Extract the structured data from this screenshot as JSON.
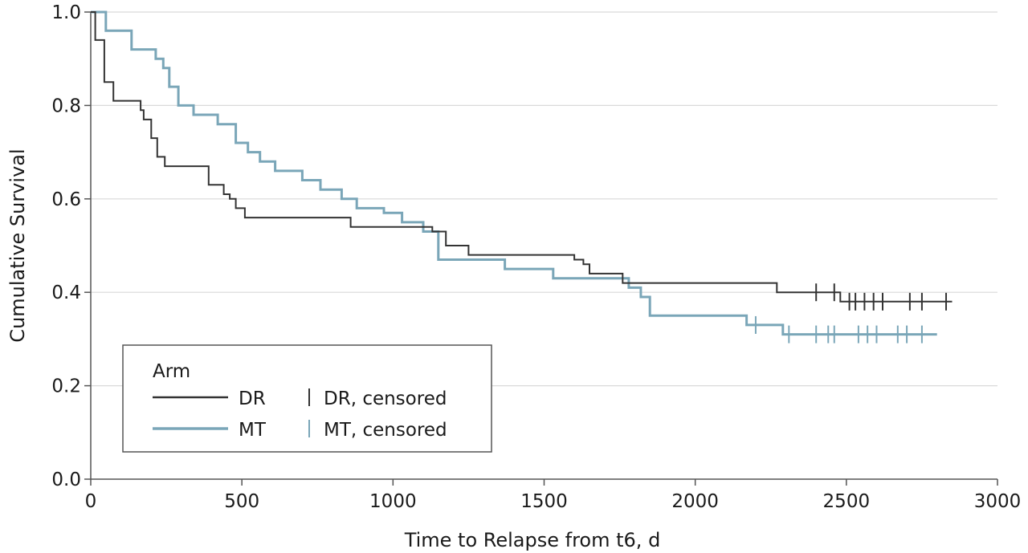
{
  "chart_data": {
    "type": "line",
    "subtype": "kaplan-meier step",
    "xlabel": "Time to Relapse from t6, d",
    "ylabel": "Cumulative Survival",
    "xlim": [
      0,
      3000
    ],
    "ylim": [
      0,
      1.0
    ],
    "xticks": [
      "0",
      "500",
      "1000",
      "1500",
      "2000",
      "2500",
      "3000"
    ],
    "yticks": [
      "0.0",
      "0.2",
      "0.4",
      "0.6",
      "0.8",
      "1.0"
    ],
    "grid": "horizontal",
    "legend": {
      "title": "Arm",
      "placement": "bottom-left",
      "items": [
        "DR",
        "MT",
        "DR, censored",
        "MT, censored"
      ]
    },
    "series": [
      {
        "name": "DR",
        "color": "#333333",
        "steps": [
          [
            0,
            1.0
          ],
          [
            15,
            0.94
          ],
          [
            45,
            0.85
          ],
          [
            75,
            0.81
          ],
          [
            165,
            0.79
          ],
          [
            175,
            0.77
          ],
          [
            200,
            0.73
          ],
          [
            220,
            0.69
          ],
          [
            245,
            0.67
          ],
          [
            310,
            0.67
          ],
          [
            330,
            0.67
          ],
          [
            390,
            0.63
          ],
          [
            440,
            0.61
          ],
          [
            460,
            0.6
          ],
          [
            480,
            0.58
          ],
          [
            510,
            0.56
          ],
          [
            630,
            0.56
          ],
          [
            700,
            0.56
          ],
          [
            860,
            0.54
          ],
          [
            1000,
            0.54
          ],
          [
            1090,
            0.54
          ],
          [
            1130,
            0.53
          ],
          [
            1175,
            0.5
          ],
          [
            1250,
            0.48
          ],
          [
            1500,
            0.48
          ],
          [
            1600,
            0.47
          ],
          [
            1630,
            0.46
          ],
          [
            1650,
            0.44
          ],
          [
            1760,
            0.42
          ],
          [
            1800,
            0.42
          ],
          [
            1900,
            0.42
          ],
          [
            2270,
            0.4
          ],
          [
            2460,
            0.4
          ],
          [
            2480,
            0.38
          ],
          [
            2850,
            0.38
          ]
        ],
        "censored": [
          2400,
          2460,
          2510,
          2530,
          2560,
          2590,
          2620,
          2710,
          2750,
          2830
        ]
      },
      {
        "name": "MT",
        "color": "#7aa6b8",
        "steps": [
          [
            0,
            1.0
          ],
          [
            50,
            0.96
          ],
          [
            135,
            0.92
          ],
          [
            215,
            0.9
          ],
          [
            240,
            0.88
          ],
          [
            260,
            0.84
          ],
          [
            290,
            0.8
          ],
          [
            340,
            0.78
          ],
          [
            420,
            0.76
          ],
          [
            480,
            0.72
          ],
          [
            520,
            0.7
          ],
          [
            560,
            0.68
          ],
          [
            610,
            0.66
          ],
          [
            700,
            0.64
          ],
          [
            760,
            0.62
          ],
          [
            830,
            0.6
          ],
          [
            880,
            0.58
          ],
          [
            970,
            0.57
          ],
          [
            1030,
            0.55
          ],
          [
            1100,
            0.53
          ],
          [
            1150,
            0.47
          ],
          [
            1370,
            0.45
          ],
          [
            1450,
            0.45
          ],
          [
            1530,
            0.43
          ],
          [
            1660,
            0.43
          ],
          [
            1780,
            0.41
          ],
          [
            1820,
            0.39
          ],
          [
            1850,
            0.35
          ],
          [
            2050,
            0.35
          ],
          [
            2170,
            0.33
          ],
          [
            2290,
            0.31
          ],
          [
            2800,
            0.31
          ]
        ],
        "censored": [
          2200,
          2310,
          2400,
          2440,
          2460,
          2540,
          2570,
          2600,
          2670,
          2700,
          2750
        ]
      }
    ]
  }
}
